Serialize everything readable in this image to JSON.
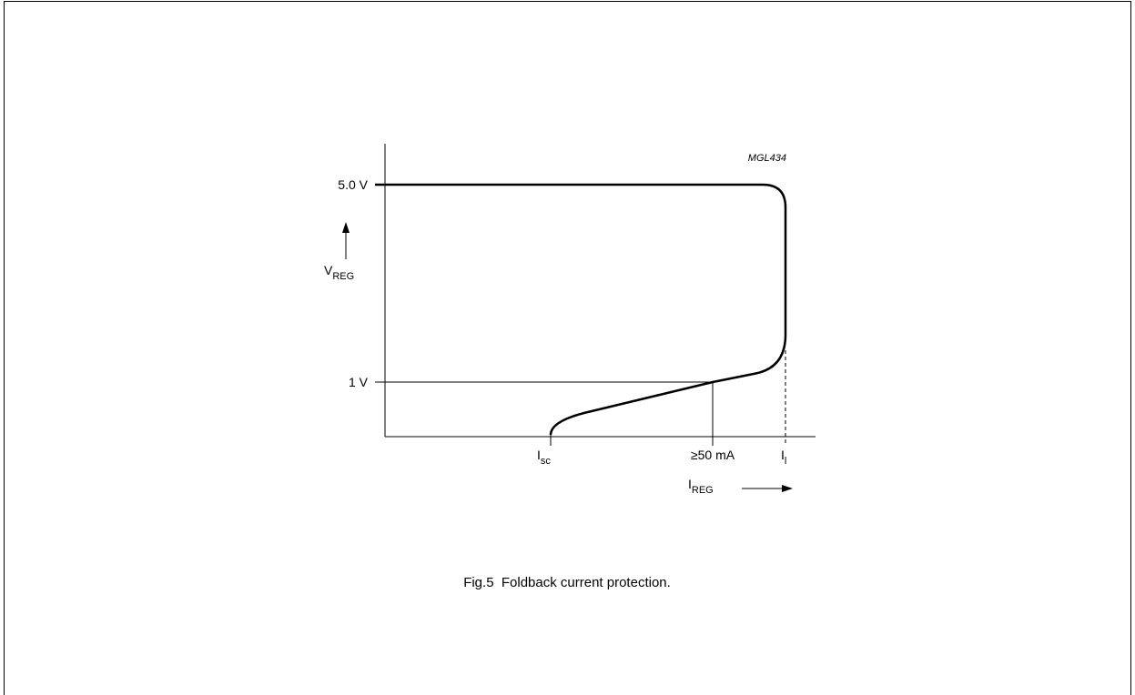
{
  "figure_id": "MGL434",
  "y_labels": {
    "high": "5.0 V",
    "low": "1 V"
  },
  "y_axis_label": {
    "main": "V",
    "sub": "REG"
  },
  "x_labels": {
    "isc": {
      "main": "I",
      "sub": "sc"
    },
    "limit": "≥50 mA",
    "il": {
      "main": "I",
      "sub": "l"
    }
  },
  "x_axis_label": {
    "main": "I",
    "sub": "REG"
  },
  "caption": "Fig.5  Foldback current protection."
}
